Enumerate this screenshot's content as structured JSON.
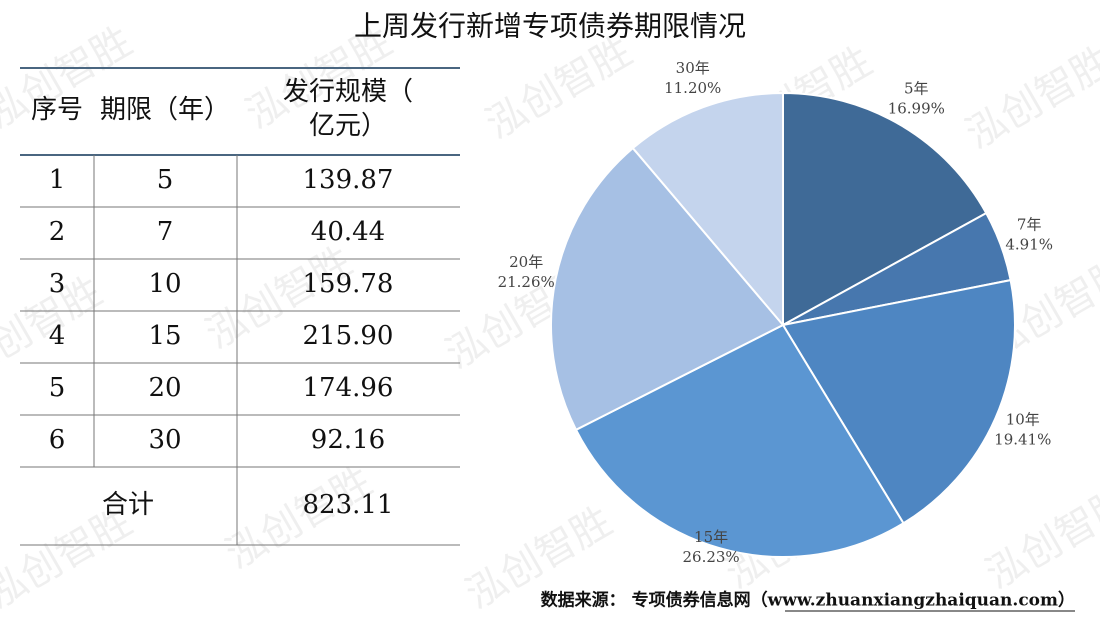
{
  "title": "上周发行新增专项债券期限情况",
  "watermark": "泓创智胜",
  "table": {
    "header": [
      "序号",
      "期限（年）",
      "发行规模（亿元）"
    ],
    "rows": [
      [
        "1",
        "5",
        "139.87"
      ],
      [
        "2",
        "7",
        "40.44"
      ],
      [
        "3",
        "10",
        "159.78"
      ],
      [
        "4",
        "15",
        "215.90"
      ],
      [
        "5",
        "20",
        "174.96"
      ],
      [
        "6",
        "30",
        "92.16"
      ]
    ],
    "total": [
      "合计",
      "823.11"
    ]
  },
  "chart_data": {
    "type": "pie",
    "categories": [
      "5年",
      "7年",
      "10年",
      "15年",
      "20年",
      "30年"
    ],
    "values": [
      16.99,
      4.91,
      19.41,
      26.23,
      21.26,
      11.2
    ],
    "value_labels": [
      "16.99%",
      "4.91%",
      "19.41%",
      "26.23%",
      "21.26%",
      "11.20%"
    ],
    "colors": [
      "#3f6a97",
      "#4777ae",
      "#4e86c2",
      "#5b96d2",
      "#a6c0e4",
      "#c4d4ed"
    ]
  },
  "source": "数据来源：  专项债券信息网（www.zhuanxiangzhaiquan.com）"
}
